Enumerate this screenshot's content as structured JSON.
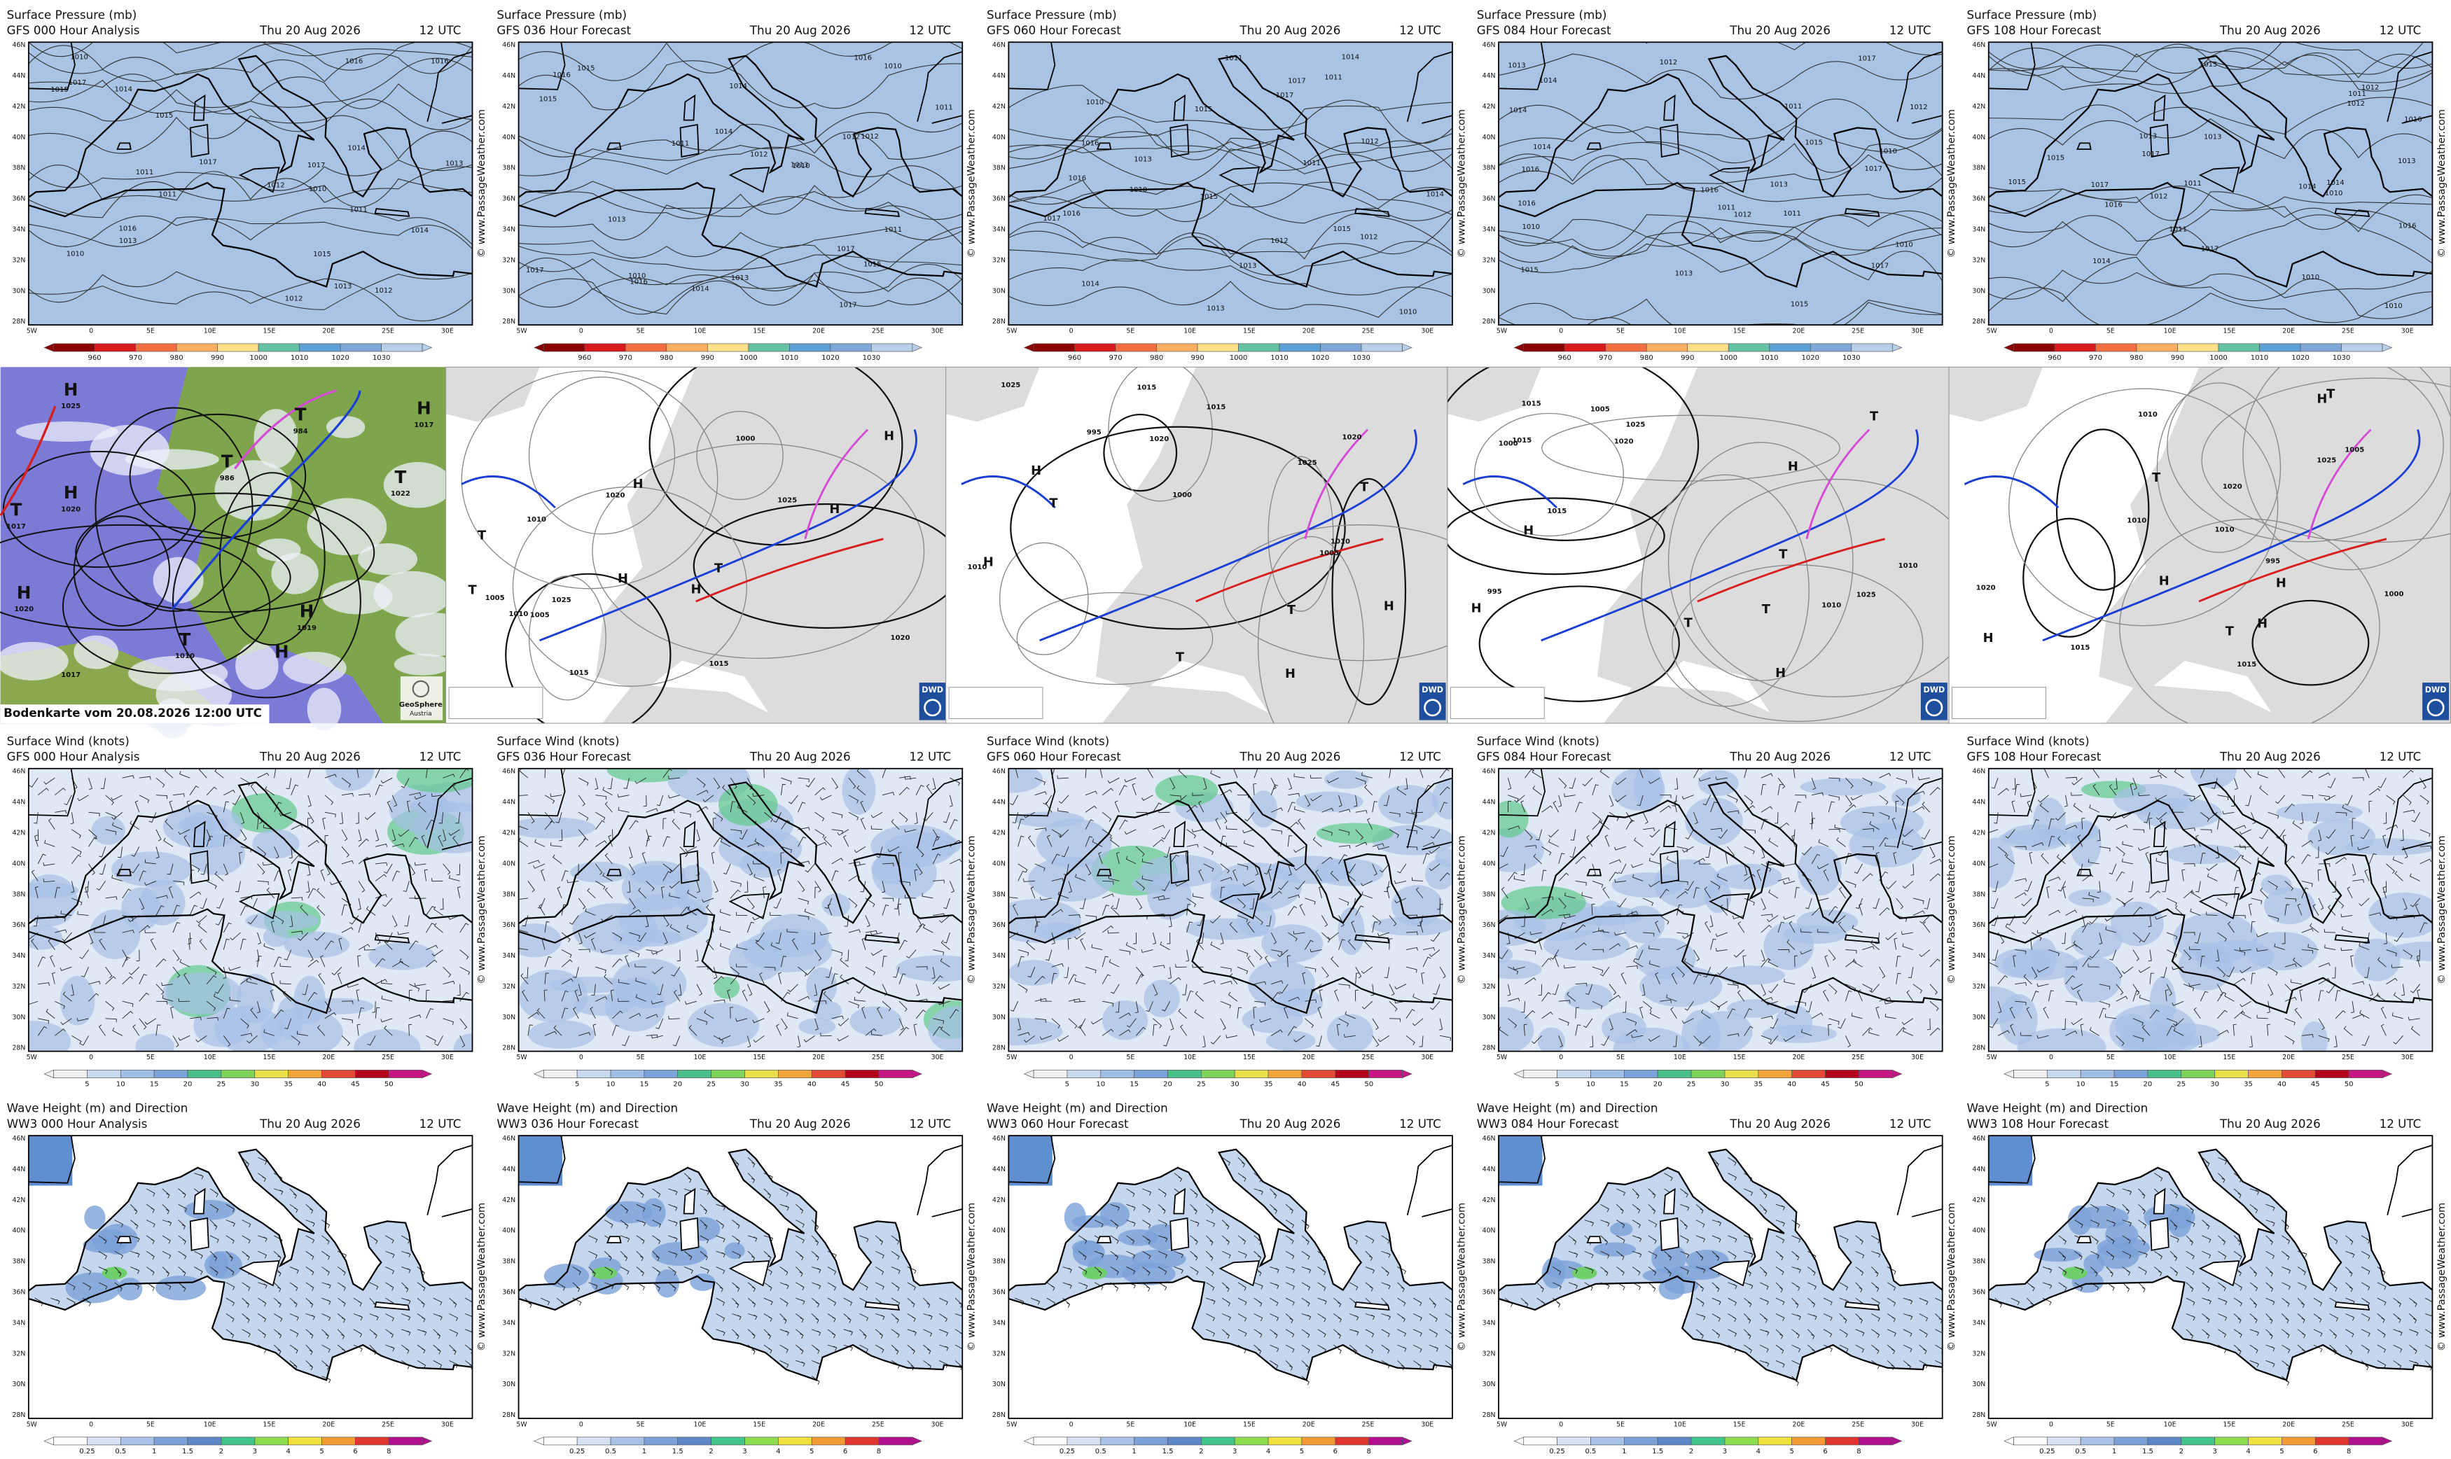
{
  "model_rows": [
    {
      "title": "Surface Pressure (mb)",
      "panels": [
        {
          "run": "GFS 000 Hour Analysis"
        },
        {
          "run": "GFS 036 Hour Forecast"
        },
        {
          "run": "GFS 060 Hour Forecast"
        },
        {
          "run": "GFS 084 Hour Forecast"
        },
        {
          "run": "GFS 108 Hour Forecast"
        }
      ],
      "isobar_labels": [
        "1010",
        "1012",
        "1014",
        "1016",
        "1011",
        "1013",
        "1015",
        "1017"
      ],
      "colorbar": [
        "960",
        "970",
        "980",
        "990",
        "1000",
        "1010",
        "1020",
        "1030"
      ]
    },
    {
      "title": "Surface Wind (knots)",
      "panels": [
        {
          "run": "GFS 000 Hour Analysis"
        },
        {
          "run": "GFS 036 Hour Forecast"
        },
        {
          "run": "GFS 060 Hour Forecast"
        },
        {
          "run": "GFS 084 Hour Forecast"
        },
        {
          "run": "GFS 108 Hour Forecast"
        }
      ],
      "colorbar": [
        "5",
        "10",
        "15",
        "20",
        "25",
        "30",
        "35",
        "40",
        "45",
        "50"
      ]
    },
    {
      "title": "Wave Height (m) and Direction",
      "panels": [
        {
          "run": "WW3 000 Hour Analysis"
        },
        {
          "run": "WW3 036 Hour Forecast"
        },
        {
          "run": "WW3 060 Hour Forecast"
        },
        {
          "run": "WW3 084 Hour Forecast"
        },
        {
          "run": "WW3 108 Hour Forecast"
        }
      ],
      "colorbar": [
        "0.25",
        "0.5",
        "1",
        "1.5",
        "2",
        "3",
        "4",
        "5",
        "6",
        "8"
      ]
    }
  ],
  "valid_date": "Thu 20 Aug 2026",
  "valid_time": "12 UTC",
  "lat_labels": [
    "46N",
    "44N",
    "42N",
    "40N",
    "38N",
    "36N",
    "34N",
    "32N",
    "30N",
    "28N"
  ],
  "lon_labels": [
    "5W",
    "0",
    "5E",
    "10E",
    "15E",
    "20E",
    "25E",
    "30E"
  ],
  "watermark": "© www.PassageWeather.com",
  "surface_analysis": {
    "satellite": {
      "caption": "Bodenkarte vom 20.08.2026 12:00 UTC",
      "logo": "GeoSphere",
      "logo_sub": "Austria",
      "labels": [
        "H",
        "1025",
        "H",
        "1020",
        "T",
        "1017",
        "H",
        "1020",
        "T",
        "986",
        "T",
        "984",
        "H",
        "1017",
        "T",
        "1022",
        "H",
        "1019",
        "T",
        "1010",
        "H",
        "1017"
      ]
    },
    "dwd_charts": [
      {
        "logo": "DWD",
        "labels": [
          "H",
          "1005",
          "1020",
          "1025",
          "1015",
          "1010",
          "H",
          "H",
          "T",
          "1000",
          "1005",
          "1010",
          "1015",
          "1020",
          "H",
          "T",
          "T",
          "1025",
          "H"
        ]
      },
      {
        "logo": "DWD",
        "labels": [
          "T",
          "1020",
          "1010",
          "1025",
          "1015",
          "995",
          "H",
          "T",
          "T",
          "1000",
          "1005",
          "1010",
          "1015",
          "1020",
          "H",
          "T",
          "H",
          "1025",
          "H"
        ]
      },
      {
        "logo": "DWD",
        "labels": [
          "T",
          "1010",
          "1015",
          "1025",
          "995",
          "1000",
          "H",
          "T",
          "T",
          "1005",
          "1010",
          "1015",
          "1020",
          "H",
          "T",
          "H",
          "1025",
          "H",
          "1015"
        ]
      },
      {
        "logo": "DWD",
        "labels": [
          "H",
          "1020",
          "1010",
          "1015",
          "995",
          "1000",
          "H",
          "T",
          "T",
          "1005",
          "1010",
          "1015",
          "1020",
          "H",
          "T",
          "H",
          "1025",
          "H",
          "1010"
        ]
      }
    ]
  }
}
